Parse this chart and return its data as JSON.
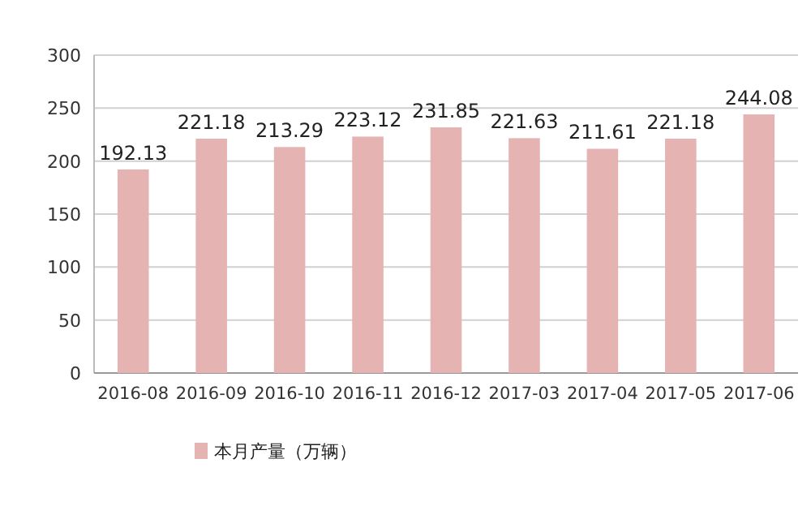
{
  "chart_data": {
    "type": "bar",
    "categories": [
      "2016-08",
      "2016-09",
      "2016-10",
      "2016-11",
      "2016-12",
      "2017-03",
      "2017-04",
      "2017-05",
      "2017-06"
    ],
    "series": [
      {
        "name": "本月产量（万辆）",
        "color": "#e6b3b3",
        "values": [
          192.13,
          221.18,
          213.29,
          223.12,
          231.85,
          221.63,
          211.61,
          221.18,
          244.08
        ]
      }
    ],
    "ylim": [
      0,
      300
    ],
    "yticks": [
      0,
      50,
      100,
      150,
      200,
      250,
      300
    ],
    "grid": "y",
    "legend": "bottom",
    "data_labels": true
  }
}
